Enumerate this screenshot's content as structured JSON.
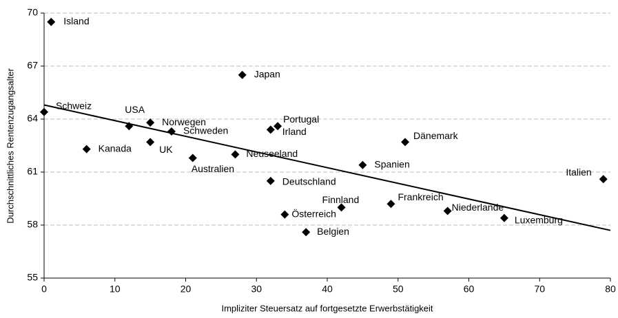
{
  "chart_data": {
    "type": "scatter",
    "x_label": "Impliziter Steuersatz auf fortgesetzte Erwerbstätigkeit",
    "y_label": "Durchschnittliches Rentenzugangsalter",
    "point_labels": [
      "Island",
      "Japan",
      "Schweiz",
      "USA",
      "Norwegen",
      "Schweden",
      "Kanada",
      "UK",
      "Australien",
      "Neuseeland",
      "Portugal",
      "Irland",
      "Deutschland",
      "Österreich",
      "Belgien",
      "Finnland",
      "Frankreich",
      "Niederlande",
      "Luxemburg",
      "Spanien",
      "Dänemark",
      "Italien"
    ],
    "x": [
      1,
      28,
      0,
      12,
      15,
      18,
      6,
      15,
      21,
      27,
      33,
      32,
      32,
      34,
      37,
      42,
      49,
      57,
      65,
      45,
      51,
      79
    ],
    "series": [
      {
        "color": "#000000",
        "values": [
          69.5,
          66.5,
          64.4,
          63.6,
          63.8,
          63.3,
          62.3,
          62.7,
          61.8,
          62.0,
          63.6,
          63.4,
          60.5,
          58.6,
          57.6,
          59.0,
          59.2,
          58.8,
          58.4,
          61.4,
          62.7,
          60.6
        ]
      }
    ],
    "trendline": {
      "x": [
        0,
        80
      ],
      "values": [
        64.8,
        57.7
      ]
    },
    "xlim": [
      0,
      80
    ],
    "xticks": [
      0,
      10,
      20,
      30,
      40,
      50,
      60,
      70,
      80
    ],
    "ylim": [
      55,
      70
    ],
    "yticks": [
      55,
      58,
      61,
      64,
      67,
      70
    ],
    "grid": true
  }
}
